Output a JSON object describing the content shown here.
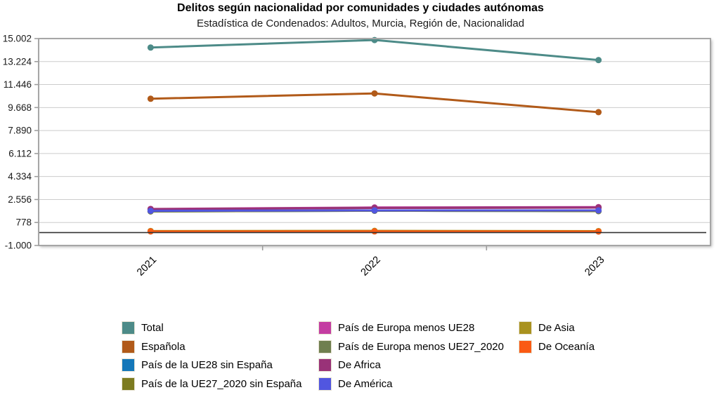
{
  "header": {
    "title": "Delitos según nacionalidad por comunidades y ciudades autónomas",
    "subtitle": "Estadística de Condenados: Adultos, Murcia, Región de, Nacionalidad"
  },
  "chart_data": {
    "type": "line",
    "title": "Delitos según nacionalidad por comunidades y ciudades autónomas",
    "subtitle": "Estadística de Condenados: Adultos, Murcia, Región de, Nacionalidad",
    "categories": [
      "2021",
      "2022",
      "2023"
    ],
    "series": [
      {
        "name": "Total",
        "color": "#4D8B88",
        "values": [
          14310,
          14890,
          13340
        ]
      },
      {
        "name": "Española",
        "color": "#B15A19",
        "values": [
          10350,
          10760,
          9310
        ]
      },
      {
        "name": "País de la UE28 sin España",
        "color": "#1477B9",
        "values": [
          1640,
          1690,
          1660
        ]
      },
      {
        "name": "País de la UE27_2020 sin España",
        "color": "#7C7B20",
        "values": [
          1640,
          1690,
          1660
        ]
      },
      {
        "name": "País de Europa menos UE28",
        "color": "#C43DA2",
        "values": [
          1830,
          1940,
          1970
        ]
      },
      {
        "name": "País de Europa menos UE27_2020",
        "color": "#6F7F4F",
        "values": [
          1800,
          1900,
          1930
        ]
      },
      {
        "name": "De Africa",
        "color": "#993278",
        "values": [
          1800,
          1900,
          1930
        ]
      },
      {
        "name": "De América",
        "color": "#5156E0",
        "values": [
          1680,
          1715,
          1710
        ]
      },
      {
        "name": "De Asia",
        "color": "#A9921F",
        "values": [
          120,
          130,
          115
        ]
      },
      {
        "name": "De Oceanía",
        "color": "#FA5A13",
        "values": [
          85,
          90,
          80
        ]
      }
    ],
    "ylim": [
      -1000,
      15002
    ],
    "ytick_values": [
      15002,
      13224,
      11446,
      9668,
      7890,
      6112,
      4334,
      2556,
      778,
      -1000
    ],
    "ytick_labels": [
      "15.002",
      "13.224",
      "11.446",
      "9.668",
      "7.890",
      "6.112",
      "4.334",
      "2.556",
      "778",
      "-1.000"
    ],
    "zero_line_value": 0,
    "grid": true,
    "legend_position": "bottom",
    "legend_columns": [
      4,
      4,
      2
    ],
    "colors": {
      "grid_line": "#cccccc",
      "frame_border": "#a6a6a6",
      "zero_line": "#333333",
      "tick": "#999999",
      "axis_text": "#1a1a1a"
    }
  }
}
